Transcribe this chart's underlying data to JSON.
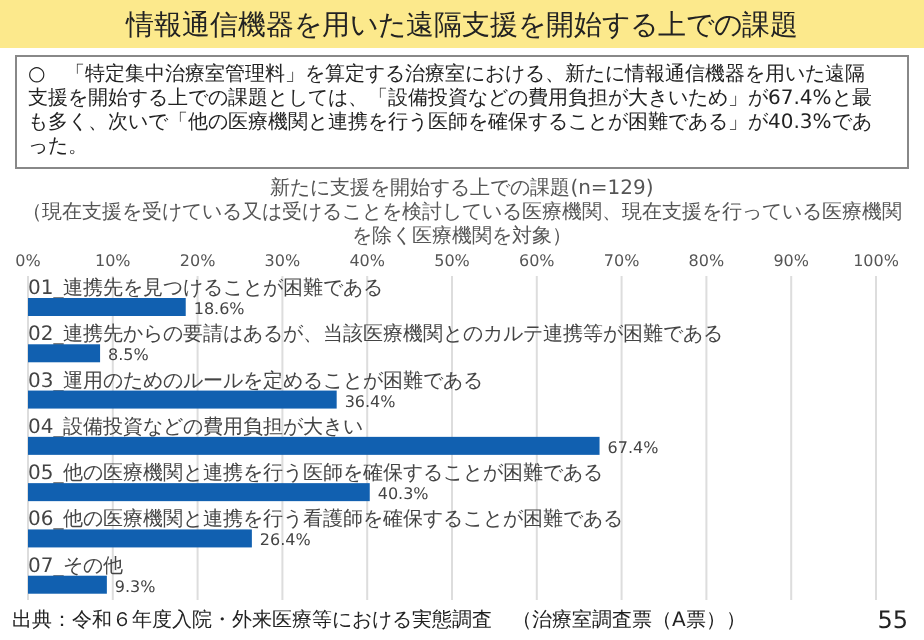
{
  "chart_data": {
    "type": "bar",
    "orientation": "horizontal",
    "title": "新たに支援を開始する上での課題(n=129)",
    "subtitle": "（現在支援を受けている又は受けることを検討している医療機関、現在支援を行っている医療機関を除く医療機関を対象）",
    "categories": [
      "01_連携先を見つけることが困難である",
      "02_連携先からの要請はあるが、当該医療機関とのカルテ連携等が困難である",
      "03_運用のためのルールを定めることが困難である",
      "04_設備投資などの費用負担が大きい",
      "05_他の医療機関と連携を行う医師を確保することが困難である",
      "06_他の医療機関と連携を行う看護師を確保することが困難である",
      "07_その他"
    ],
    "values": [
      18.6,
      8.5,
      36.4,
      67.4,
      40.3,
      26.4,
      9.3
    ],
    "value_labels": [
      "18.6%",
      "8.5%",
      "36.4%",
      "67.4%",
      "40.3%",
      "26.4%",
      "9.3%"
    ],
    "color": "#1160b0",
    "xlim": [
      0,
      100
    ],
    "xticks": [
      {
        "value": 0,
        "label": "0%"
      },
      {
        "value": 10,
        "label": "10%"
      },
      {
        "value": 20,
        "label": "20%"
      },
      {
        "value": 30,
        "label": "30%"
      },
      {
        "value": 40,
        "label": "40%"
      },
      {
        "value": 50,
        "label": "50%"
      },
      {
        "value": 60,
        "label": "60%"
      },
      {
        "value": 70,
        "label": "70%"
      },
      {
        "value": 80,
        "label": "80%"
      },
      {
        "value": 90,
        "label": "90%"
      },
      {
        "value": 100,
        "label": "100%"
      }
    ],
    "grid": "x",
    "annotations": [
      "情報通信機器を用いた遠隔支援を開始する上での課題",
      "○　「特定集中治療室管理料」を算定する治療室における、新たに情報通信機器を用いた遠隔支援を開始する上での課題としては、「設備投資などの費用負担が大きいため」が67.4%と最も多く、次いで「他の医療機関と連携を行う医師を確保することが困難である」が40.3%であった。",
      "出典：令和６年度入院・外来医療等における実態調査　（治療室調査票（A票））",
      "55"
    ]
  }
}
